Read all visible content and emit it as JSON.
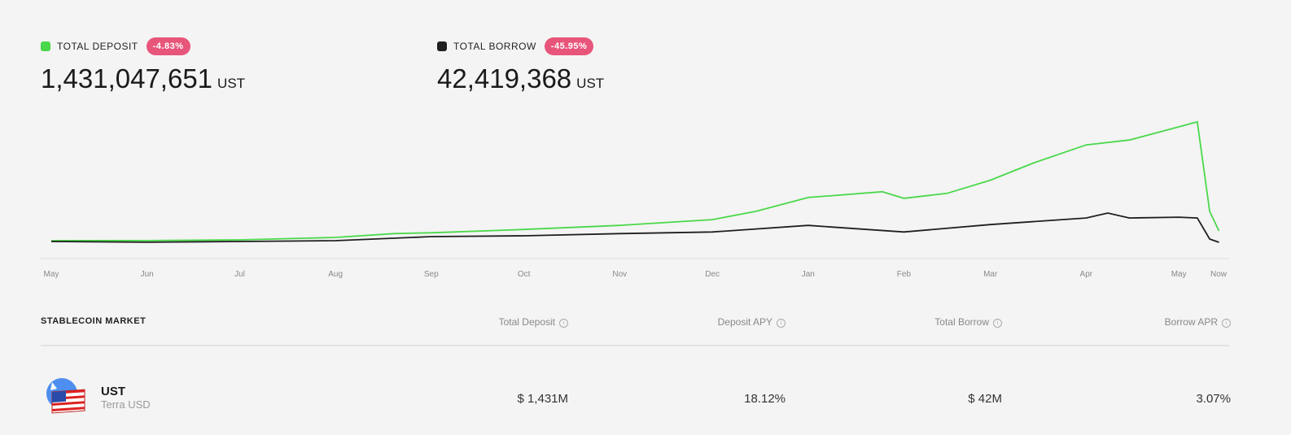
{
  "stats": {
    "deposit": {
      "label": "TOTAL DEPOSIT",
      "change": "-4.83%",
      "value": "1,431,047,651",
      "unit": "UST",
      "color": "#4ad84a"
    },
    "borrow": {
      "label": "TOTAL BORROW",
      "change": "-45.95%",
      "value": "42,419,368",
      "unit": "UST",
      "color": "#1f1f1f"
    }
  },
  "chart_data": {
    "type": "line",
    "x_ticks": [
      "May",
      "Jun",
      "Jul",
      "Aug",
      "Sep",
      "Oct",
      "Nov",
      "Dec",
      "Jan",
      "Feb",
      "Mar",
      "Apr",
      "May",
      "Now"
    ],
    "x_range": [
      "2021-05-01",
      "2022-05-14"
    ],
    "grid": false,
    "series": [
      {
        "name": "TOTAL DEPOSIT",
        "color": "#4ad84a",
        "points": [
          [
            "2021-05-01",
            0.24
          ],
          [
            "2021-06-01",
            0.25
          ],
          [
            "2021-07-01",
            0.34
          ],
          [
            "2021-08-01",
            0.63
          ],
          [
            "2021-08-20",
            1.1
          ],
          [
            "2021-09-01",
            1.2
          ],
          [
            "2021-10-01",
            1.6
          ],
          [
            "2021-11-01",
            2.1
          ],
          [
            "2021-12-01",
            2.8
          ],
          [
            "2021-12-15",
            3.8
          ],
          [
            "2022-01-01",
            5.5
          ],
          [
            "2022-01-25",
            6.2
          ],
          [
            "2022-02-01",
            5.4
          ],
          [
            "2022-02-15",
            6.0
          ],
          [
            "2022-03-01",
            7.6
          ],
          [
            "2022-03-15",
            9.7
          ],
          [
            "2022-04-01",
            11.9
          ],
          [
            "2022-04-15",
            12.5
          ],
          [
            "2022-05-01",
            14.1
          ],
          [
            "2022-05-07",
            14.7
          ],
          [
            "2022-05-11",
            3.8
          ],
          [
            "2022-05-14",
            1.43
          ]
        ]
      },
      {
        "name": "TOTAL BORROW",
        "color": "#1f1f1f",
        "points": [
          [
            "2021-05-01",
            0.14
          ],
          [
            "2021-06-01",
            0.05
          ],
          [
            "2021-07-01",
            0.14
          ],
          [
            "2021-08-01",
            0.24
          ],
          [
            "2021-09-01",
            0.73
          ],
          [
            "2021-10-01",
            0.83
          ],
          [
            "2021-11-01",
            1.1
          ],
          [
            "2021-12-01",
            1.3
          ],
          [
            "2022-01-01",
            2.1
          ],
          [
            "2022-02-01",
            1.3
          ],
          [
            "2022-03-01",
            2.2
          ],
          [
            "2022-04-01",
            3.0
          ],
          [
            "2022-04-08",
            3.6
          ],
          [
            "2022-04-15",
            3.0
          ],
          [
            "2022-05-01",
            3.1
          ],
          [
            "2022-05-07",
            3.0
          ],
          [
            "2022-05-11",
            0.44
          ],
          [
            "2022-05-14",
            0.042
          ]
        ]
      }
    ]
  },
  "market": {
    "title": "STABLECOIN MARKET",
    "columns": [
      "Total Deposit",
      "Deposit APY",
      "Total Borrow",
      "Borrow APR"
    ],
    "info_glyph": "i",
    "rows": [
      {
        "symbol": "UST",
        "name": "Terra USD",
        "total_deposit": "$ 1,431M",
        "deposit_apy": "18.12%",
        "total_borrow": "$ 42M",
        "borrow_apr": "3.07%"
      }
    ]
  }
}
